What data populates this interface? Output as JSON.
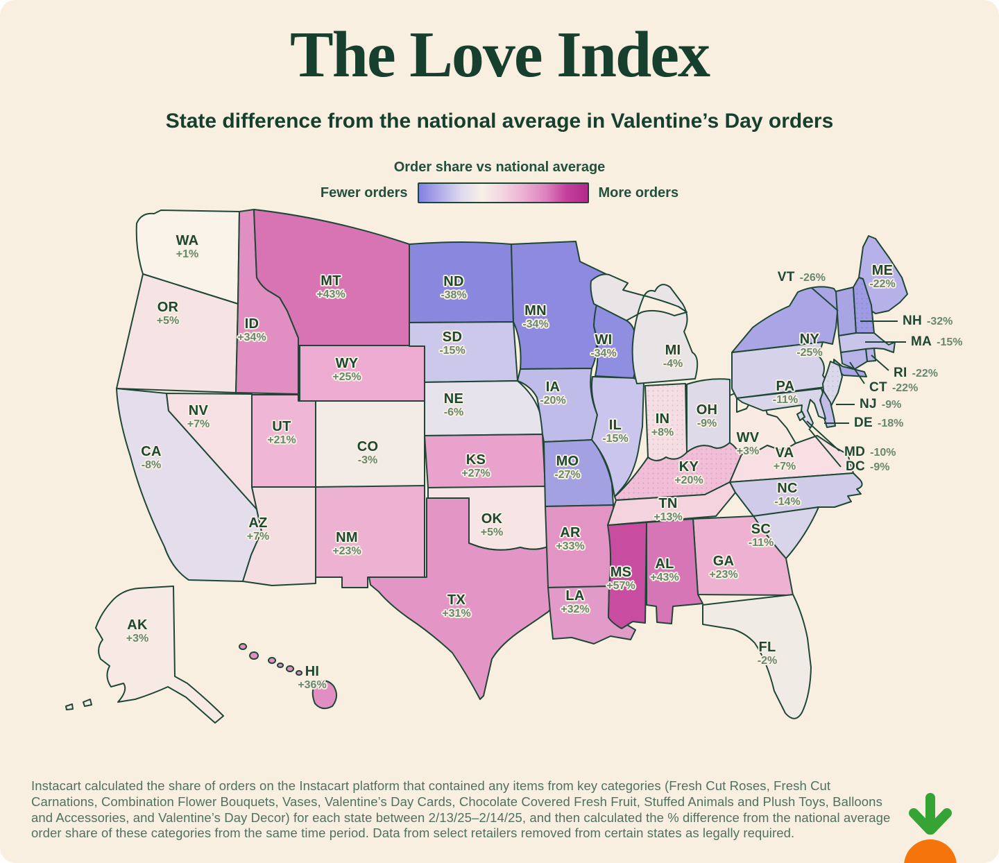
{
  "page": {
    "title": "The Love Index",
    "subtitle": "State difference from the national average in Valentine’s Day orders",
    "footnote": "Instacart calculated the share of orders on the Instacart platform that contained any items from key categories (Fresh Cut Roses, Fresh Cut Carnations, Combination Flower Bouquets, Vases, Valentine’s Day Cards, Chocolate Covered Fresh Fruit, Stuffed Animals and Plush Toys, Balloons and Accessories, and Valentine’s Day Decor) for each state between 2/13/25–2/14/25, and then calculated the % difference from the national average order share of these categories from the same time period. Data from select retailers removed from certain states as legally required.",
    "background_color": "#f8efe1",
    "heading_color": "#16402d",
    "outline_color": "#1e4634",
    "brand_logo": {
      "name": "instacart-carrot",
      "leaf_color": "#35a435",
      "carrot_color": "#f6740c"
    }
  },
  "legend": {
    "title": "Order share vs national average",
    "fewer_label": "Fewer orders",
    "more_label": "More orders",
    "gradient_stops": [
      "#8280e2",
      "#b0ade9",
      "#ded9ee",
      "#f7f0e6",
      "#f3d3e1",
      "#ebaed2",
      "#dd82bf",
      "#c43f9c",
      "#b12a8c"
    ]
  },
  "chart_data": {
    "type": "choropleth",
    "title": "The Love Index",
    "subtitle": "State difference from the national average in Valentine’s Day orders",
    "unit": "% vs national average",
    "legend": {
      "low": "Fewer orders",
      "high": "More orders"
    },
    "states": [
      {
        "code": "WA",
        "value": "+1%",
        "value_num": 1,
        "color": "#faf3ea",
        "textured": false,
        "callout": false
      },
      {
        "code": "OR",
        "value": "+5%",
        "value_num": 5,
        "color": "#f6e3e3",
        "textured": false,
        "callout": false
      },
      {
        "code": "CA",
        "value": "-8%",
        "value_num": -8,
        "color": "#e4deec",
        "textured": false,
        "callout": false
      },
      {
        "code": "NV",
        "value": "+7%",
        "value_num": 7,
        "color": "#f6e0e3",
        "textured": false,
        "callout": false
      },
      {
        "code": "ID",
        "value": "+34%",
        "value_num": 34,
        "color": "#e18fc2",
        "textured": false,
        "callout": false
      },
      {
        "code": "MT",
        "value": "+43%",
        "value_num": 43,
        "color": "#d873b4",
        "textured": false,
        "callout": false
      },
      {
        "code": "WY",
        "value": "+25%",
        "value_num": 25,
        "color": "#eeabd1",
        "textured": false,
        "callout": false
      },
      {
        "code": "UT",
        "value": "+21%",
        "value_num": 21,
        "color": "#efb6d5",
        "textured": false,
        "callout": false
      },
      {
        "code": "CO",
        "value": "-3%",
        "value_num": -3,
        "color": "#f3ece6",
        "textured": false,
        "callout": false
      },
      {
        "code": "AZ",
        "value": "+7%",
        "value_num": 7,
        "color": "#f5dee2",
        "textured": false,
        "callout": false
      },
      {
        "code": "NM",
        "value": "+23%",
        "value_num": 23,
        "color": "#edb2d2",
        "textured": false,
        "callout": false
      },
      {
        "code": "ND",
        "value": "-38%",
        "value_num": -38,
        "color": "#8987de",
        "textured": false,
        "callout": false
      },
      {
        "code": "SD",
        "value": "-15%",
        "value_num": -15,
        "color": "#ccc8ec",
        "textured": false,
        "callout": false
      },
      {
        "code": "NE",
        "value": "-6%",
        "value_num": -6,
        "color": "#e7e3ed",
        "textured": false,
        "callout": false
      },
      {
        "code": "KS",
        "value": "+27%",
        "value_num": 27,
        "color": "#e8a2cc",
        "textured": false,
        "callout": false
      },
      {
        "code": "OK",
        "value": "+5%",
        "value_num": 5,
        "color": "#f7e5e5",
        "textured": false,
        "callout": false
      },
      {
        "code": "TX",
        "value": "+31%",
        "value_num": 31,
        "color": "#e396c6",
        "textured": false,
        "callout": false
      },
      {
        "code": "MN",
        "value": "-34%",
        "value_num": -34,
        "color": "#8d8adf",
        "textured": false,
        "callout": false
      },
      {
        "code": "IA",
        "value": "-20%",
        "value_num": -20,
        "color": "#c0bce9",
        "textured": false,
        "callout": false
      },
      {
        "code": "MO",
        "value": "-27%",
        "value_num": -27,
        "color": "#a4a1e3",
        "textured": false,
        "callout": false
      },
      {
        "code": "AR",
        "value": "+33%",
        "value_num": 33,
        "color": "#e294c4",
        "textured": false,
        "callout": false
      },
      {
        "code": "LA",
        "value": "+32%",
        "value_num": 32,
        "color": "#e29ac8",
        "textured": false,
        "callout": false
      },
      {
        "code": "WI",
        "value": "-34%",
        "value_num": -34,
        "color": "#908ee0",
        "textured": false,
        "callout": false
      },
      {
        "code": "IL",
        "value": "-15%",
        "value_num": -15,
        "color": "#c9c5ec",
        "textured": false,
        "callout": false
      },
      {
        "code": "MS",
        "value": "+57%",
        "value_num": 57,
        "color": "#c84da0",
        "textured": false,
        "callout": false
      },
      {
        "code": "MI",
        "value": "-4%",
        "value_num": -4,
        "color": "#e9e4e6",
        "textured": false,
        "callout": false
      },
      {
        "code": "IN",
        "value": "+8%",
        "value_num": 8,
        "color": "#f6dde4",
        "textured": true,
        "callout": false
      },
      {
        "code": "OH",
        "value": "-9%",
        "value_num": -9,
        "color": "#dfdae8",
        "textured": false,
        "callout": false
      },
      {
        "code": "KY",
        "value": "+20%",
        "value_num": 20,
        "color": "#f2bdd7",
        "textured": true,
        "callout": false
      },
      {
        "code": "TN",
        "value": "+13%",
        "value_num": 13,
        "color": "#f4d3de",
        "textured": false,
        "callout": false
      },
      {
        "code": "WV",
        "value": "+3%",
        "value_num": 3,
        "color": "#f9ebe4",
        "textured": false,
        "callout": false
      },
      {
        "code": "VA",
        "value": "+7%",
        "value_num": 7,
        "color": "#f8dfe3",
        "textured": false,
        "callout": false
      },
      {
        "code": "NC",
        "value": "-14%",
        "value_num": -14,
        "color": "#cfcbe9",
        "textured": false,
        "callout": false
      },
      {
        "code": "SC",
        "value": "-11%",
        "value_num": -11,
        "color": "#d8d4ea",
        "textured": false,
        "callout": false
      },
      {
        "code": "GA",
        "value": "+23%",
        "value_num": 23,
        "color": "#eeb1d1",
        "textured": false,
        "callout": false
      },
      {
        "code": "AL",
        "value": "+43%",
        "value_num": 43,
        "color": "#d776b6",
        "textured": false,
        "callout": false
      },
      {
        "code": "FL",
        "value": "-2%",
        "value_num": -2,
        "color": "#f1ebe5",
        "textured": false,
        "callout": false
      },
      {
        "code": "PA",
        "value": "-11%",
        "value_num": -11,
        "color": "#d6d2e9",
        "textured": false,
        "callout": false
      },
      {
        "code": "NY",
        "value": "-25%",
        "value_num": -25,
        "color": "#aaa6e6",
        "textured": false,
        "callout": false
      },
      {
        "code": "ME",
        "value": "-22%",
        "value_num": -22,
        "color": "#b6b1e8",
        "textured": false,
        "callout": false
      },
      {
        "code": "VT",
        "value": "-26%",
        "value_num": -26,
        "color": "#a9a5e5",
        "textured": false,
        "callout": true
      },
      {
        "code": "NH",
        "value": "-32%",
        "value_num": -32,
        "color": "#9e9ae3",
        "textured": true,
        "callout": true
      },
      {
        "code": "MA",
        "value": "-15%",
        "value_num": -15,
        "color": "#c9c4ea",
        "textured": false,
        "callout": true
      },
      {
        "code": "RI",
        "value": "-22%",
        "value_num": -22,
        "color": "#b6b2e7",
        "textured": false,
        "callout": true
      },
      {
        "code": "CT",
        "value": "-22%",
        "value_num": -22,
        "color": "#b7b3e8",
        "textured": false,
        "callout": true
      },
      {
        "code": "NJ",
        "value": "-9%",
        "value_num": -9,
        "color": "#dcd8eb",
        "textured": true,
        "callout": true
      },
      {
        "code": "DE",
        "value": "-18%",
        "value_num": -18,
        "color": "#c1bce8",
        "textured": false,
        "callout": true
      },
      {
        "code": "MD",
        "value": "-10%",
        "value_num": -10,
        "color": "#d9d5ea",
        "textured": false,
        "callout": true
      },
      {
        "code": "DC",
        "value": "-9%",
        "value_num": -9,
        "color": "#dcd8eb",
        "textured": false,
        "callout": true
      },
      {
        "code": "AK",
        "value": "+3%",
        "value_num": 3,
        "color": "#f7eae4",
        "textured": false,
        "callout": false
      },
      {
        "code": "HI",
        "value": "+36%",
        "value_num": 36,
        "color": "#e18fc2",
        "textured": false,
        "callout": false
      }
    ]
  }
}
